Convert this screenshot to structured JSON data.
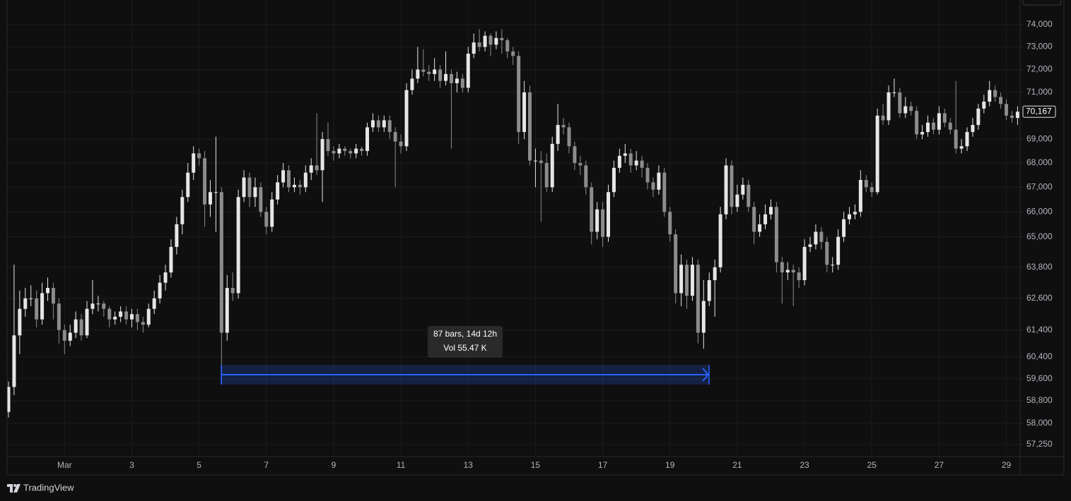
{
  "chart_data": {
    "type": "candlestick",
    "ylog": true,
    "grid": true,
    "up_color": "#e6e6e6",
    "down_color": "#8c8c8c",
    "ylim": [
      56830,
      75125
    ],
    "yticks": [
      {
        "value": 74000,
        "label": "74,000"
      },
      {
        "value": 73000,
        "label": "73,000"
      },
      {
        "value": 72000,
        "label": "72,000"
      },
      {
        "value": 71000,
        "label": "71,000"
      },
      {
        "value": 69000,
        "label": "69,000"
      },
      {
        "value": 68000,
        "label": "68,000"
      },
      {
        "value": 67000,
        "label": "67,000"
      },
      {
        "value": 66000,
        "label": "66,000"
      },
      {
        "value": 65000,
        "label": "65,000"
      },
      {
        "value": 63800,
        "label": "63,800"
      },
      {
        "value": 62600,
        "label": "62,600"
      },
      {
        "value": 61400,
        "label": "61,400"
      },
      {
        "value": 60400,
        "label": "60,400"
      },
      {
        "value": 59600,
        "label": "59,600"
      },
      {
        "value": 58800,
        "label": "58,800"
      },
      {
        "value": 58000,
        "label": "58,000"
      },
      {
        "value": 57250,
        "label": "57,250"
      }
    ],
    "last_price": {
      "value": 70167,
      "label": "70,167"
    },
    "annotations": [
      "87 bars, 14d 12h",
      "Vol 55.47 K"
    ],
    "watermark": "TradingView",
    "categories": [
      null,
      null,
      null,
      null,
      null,
      null,
      null,
      null,
      null,
      null,
      "Mar",
      null,
      null,
      null,
      null,
      null,
      null,
      null,
      null,
      null,
      null,
      null,
      "3",
      null,
      null,
      null,
      null,
      null,
      null,
      null,
      null,
      null,
      null,
      null,
      "5",
      null,
      null,
      null,
      null,
      null,
      null,
      null,
      null,
      null,
      null,
      null,
      "7",
      null,
      null,
      null,
      null,
      null,
      null,
      null,
      null,
      null,
      null,
      null,
      "9",
      null,
      null,
      null,
      null,
      null,
      null,
      null,
      null,
      null,
      null,
      null,
      "11",
      null,
      null,
      null,
      null,
      null,
      null,
      null,
      null,
      null,
      null,
      null,
      "13",
      null,
      null,
      null,
      null,
      null,
      null,
      null,
      null,
      null,
      null,
      null,
      "15",
      null,
      null,
      null,
      null,
      null,
      null,
      null,
      null,
      null,
      null,
      null,
      "17",
      null,
      null,
      null,
      null,
      null,
      null,
      null,
      null,
      null,
      null,
      null,
      "19",
      null,
      null,
      null,
      null,
      null,
      null,
      null,
      null,
      null,
      null,
      null,
      "21",
      null,
      null,
      null,
      null,
      null,
      null,
      null,
      null,
      null,
      null,
      null,
      "23",
      null,
      null,
      null,
      null,
      null,
      null,
      null,
      null,
      null,
      null,
      null,
      "25",
      null,
      null,
      null,
      null,
      null,
      null,
      null,
      null,
      null,
      null,
      null,
      "27",
      null,
      null,
      null,
      null,
      null,
      null,
      null,
      null,
      null,
      null,
      null,
      "29",
      null,
      null
    ],
    "open": [
      58400,
      59300,
      61200,
      62200,
      62600,
      62600,
      61800,
      62800,
      63000,
      62400,
      61400,
      61000,
      61300,
      61800,
      61200,
      62200,
      62400,
      62400,
      62200,
      61800,
      61900,
      62100,
      61800,
      62000,
      61700,
      61600,
      62200,
      62600,
      63200,
      63600,
      64600,
      65500,
      66600,
      67600,
      68400,
      68200,
      66300,
      66800,
      66800,
      61300,
      63000,
      62800,
      66600,
      67400,
      66600,
      67000,
      66000,
      65400,
      66500,
      67200,
      67700,
      67000,
      67100,
      67000,
      67600,
      67900,
      67700,
      69000,
      68500,
      68400,
      68600,
      68500,
      68400,
      68600,
      68500,
      69500,
      69800,
      69500,
      69800,
      69300,
      68900,
      68700,
      71100,
      71600,
      72000,
      71900,
      71800,
      72000,
      71500,
      71800,
      71400,
      71600,
      71200,
      72700,
      73200,
      73000,
      73500,
      73100,
      73400,
      73300,
      72800,
      72600,
      69300,
      71000,
      68100,
      68100,
      68000,
      67000,
      68800,
      69600,
      69500,
      68700,
      68000,
      67900,
      67000,
      65200,
      66100,
      65000,
      66800,
      67800,
      68300,
      68400,
      67900,
      68100,
      67800,
      67200,
      66900,
      67600,
      66000,
      65100,
      62800,
      63900,
      62700,
      63900,
      61300,
      62500,
      63300,
      63800,
      65900,
      67900,
      66200,
      66700,
      67100,
      66200,
      65200,
      65500,
      65900,
      66200,
      64000,
      63600,
      63700,
      63600,
      63300,
      64600,
      64700,
      65200,
      64800,
      63900,
      63900,
      65000,
      65700,
      65900,
      66000,
      67300,
      67000,
      66800,
      70000,
      69800,
      71000,
      71000,
      70100,
      70400,
      70200,
      69200,
      69300,
      69700,
      69400,
      70100,
      69700,
      69400,
      68600,
      68700,
      69300,
      69600,
      70300,
      70600,
      71100,
      70800,
      70500,
      70000,
      69900
    ],
    "high": [
      59500,
      63900,
      62900,
      63000,
      63100,
      62900,
      63200,
      63400,
      63200,
      62600,
      61600,
      61600,
      62100,
      62000,
      62500,
      63300,
      62700,
      62500,
      62300,
      62100,
      62300,
      62300,
      62200,
      62200,
      61900,
      62400,
      62900,
      63500,
      63900,
      64900,
      65800,
      66900,
      68000,
      68700,
      68600,
      68500,
      67300,
      69100,
      67000,
      63500,
      63600,
      66900,
      67700,
      67600,
      67400,
      67200,
      66200,
      66800,
      67500,
      68000,
      67900,
      67400,
      67300,
      67900,
      68200,
      70100,
      69300,
      69700,
      68700,
      68800,
      68700,
      68600,
      68800,
      68700,
      69700,
      70100,
      70000,
      70000,
      70000,
      69500,
      69200,
      71400,
      72000,
      73000,
      72900,
      72200,
      72500,
      72200,
      72800,
      72000,
      71900,
      71800,
      73000,
      73600,
      73800,
      73700,
      73600,
      73700,
      73800,
      73400,
      73000,
      72800,
      71500,
      71300,
      68600,
      68500,
      68400,
      69100,
      70500,
      69900,
      69700,
      68900,
      68300,
      68100,
      67200,
      66400,
      66400,
      67100,
      68100,
      68600,
      68800,
      68600,
      68500,
      68300,
      68000,
      67400,
      67900,
      67800,
      66200,
      65300,
      64300,
      64100,
      64200,
      64100,
      63300,
      63600,
      64100,
      66200,
      68200,
      68100,
      67100,
      67400,
      67300,
      66400,
      65900,
      66300,
      66500,
      66400,
      64200,
      64000,
      63900,
      63800,
      64900,
      65000,
      65500,
      65400,
      65000,
      64200,
      65300,
      66000,
      66200,
      66300,
      67700,
      67500,
      67200,
      70300,
      70500,
      71300,
      71600,
      71200,
      70800,
      70600,
      70400,
      69600,
      70000,
      69900,
      70400,
      70300,
      69900,
      71500,
      69000,
      69500,
      69900,
      70500,
      70900,
      71500,
      71300,
      71000,
      70700,
      70200,
      70400
    ],
    "low": [
      58200,
      59000,
      60500,
      61900,
      62300,
      61500,
      61600,
      62500,
      61800,
      60900,
      60500,
      60800,
      61100,
      61000,
      61100,
      62000,
      62100,
      61900,
      61500,
      61600,
      61700,
      61600,
      61500,
      61400,
      61300,
      61500,
      62000,
      62400,
      62900,
      63400,
      64300,
      65100,
      66400,
      67300,
      67900,
      65400,
      65800,
      65200,
      59400,
      61000,
      62500,
      62600,
      66400,
      66200,
      66200,
      65800,
      65100,
      65200,
      66300,
      67000,
      66800,
      66800,
      66700,
      66800,
      67300,
      67500,
      66400,
      68300,
      68100,
      68200,
      68300,
      68200,
      68200,
      68300,
      68300,
      69300,
      69300,
      69300,
      69000,
      67000,
      68400,
      68500,
      70900,
      71400,
      71700,
      71500,
      71500,
      71200,
      71300,
      68600,
      71000,
      71000,
      71000,
      72500,
      72800,
      72800,
      72600,
      72900,
      72700,
      72500,
      72200,
      68800,
      69000,
      67900,
      67000,
      65600,
      66800,
      66800,
      68500,
      69200,
      68400,
      67700,
      67500,
      66700,
      64700,
      64900,
      64600,
      64800,
      66600,
      67600,
      68000,
      67600,
      67700,
      67400,
      66900,
      66600,
      66700,
      65800,
      64800,
      62400,
      62300,
      62200,
      62500,
      60900,
      60700,
      62300,
      61900,
      63600,
      65700,
      65900,
      66000,
      66500,
      66000,
      64700,
      65000,
      65300,
      65700,
      63600,
      62400,
      63300,
      62300,
      63000,
      63100,
      64400,
      64500,
      64500,
      63600,
      63600,
      63700,
      64800,
      65500,
      65700,
      65800,
      66800,
      66600,
      66700,
      69600,
      69600,
      70800,
      69900,
      69900,
      70000,
      69000,
      69000,
      69100,
      69200,
      69200,
      69500,
      69200,
      68400,
      68400,
      68500,
      69100,
      69400,
      70100,
      70400,
      70600,
      70300,
      69800,
      69700,
      69600
    ],
    "close": [
      59300,
      61200,
      62200,
      62600,
      62600,
      61800,
      62800,
      63000,
      62400,
      61400,
      61000,
      61300,
      61800,
      61200,
      62200,
      62400,
      62400,
      62200,
      61800,
      61900,
      62100,
      61800,
      62000,
      61700,
      61600,
      62200,
      62600,
      63200,
      63600,
      64600,
      65500,
      66600,
      67600,
      68400,
      68200,
      66300,
      66800,
      66800,
      61300,
      63000,
      62800,
      66600,
      67400,
      66600,
      67000,
      66000,
      65400,
      66500,
      67200,
      67700,
      67000,
      67100,
      67000,
      67600,
      67900,
      67700,
      69000,
      68500,
      68400,
      68600,
      68500,
      68400,
      68600,
      68500,
      69500,
      69800,
      69500,
      69800,
      69300,
      68900,
      68700,
      71100,
      71600,
      72000,
      71900,
      71800,
      72000,
      71500,
      71800,
      71400,
      71600,
      71200,
      72700,
      73200,
      73000,
      73500,
      73100,
      73400,
      73300,
      72800,
      72600,
      69300,
      71000,
      68100,
      68100,
      68000,
      67000,
      68800,
      69600,
      69500,
      68700,
      68000,
      67900,
      67000,
      65200,
      66100,
      65000,
      66800,
      67800,
      68300,
      68400,
      67900,
      68100,
      67800,
      67200,
      66900,
      67600,
      66000,
      65100,
      62800,
      63900,
      62700,
      63900,
      61300,
      62500,
      63300,
      63800,
      65900,
      67900,
      66200,
      66700,
      67100,
      66200,
      65200,
      65500,
      65900,
      66200,
      64000,
      63600,
      63700,
      63600,
      63300,
      64600,
      64700,
      65200,
      64800,
      63900,
      63900,
      65000,
      65700,
      65900,
      66000,
      67300,
      67000,
      66800,
      70000,
      69800,
      71000,
      71000,
      70100,
      70400,
      70200,
      69200,
      69300,
      69700,
      69400,
      70100,
      69700,
      69400,
      68600,
      68700,
      69300,
      69600,
      70300,
      70600,
      71100,
      70800,
      70500,
      70000,
      69900,
      70167
    ]
  }
}
